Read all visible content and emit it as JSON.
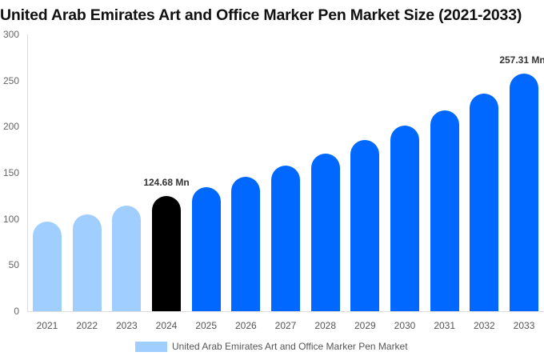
{
  "chart_data": {
    "type": "bar",
    "title": "United Arab Emirates Art and Office Marker Pen Market Size (2021-2033)",
    "xlabel": "",
    "ylabel": "",
    "ylim": [
      0,
      300
    ],
    "yticks": [
      0,
      50,
      100,
      150,
      200,
      250,
      300
    ],
    "categories": [
      "2021",
      "2022",
      "2023",
      "2024",
      "2025",
      "2026",
      "2027",
      "2028",
      "2029",
      "2030",
      "2031",
      "2032",
      "2033"
    ],
    "series": [
      {
        "name": "United Arab Emirates Art and Office Marker Pen Market",
        "values": [
          97,
          105,
          114.5,
          124.68,
          134.4,
          145.7,
          157.8,
          170.9,
          185.6,
          201.2,
          217.7,
          235.9,
          257.31
        ]
      }
    ],
    "annotations": [
      {
        "category": "2024",
        "text": "124.68 Mn"
      },
      {
        "category": "2033",
        "text": "257.31 Mn"
      }
    ],
    "bar_colors": [
      "#a0cfff",
      "#a0cfff",
      "#a0cfff",
      "#000000",
      "#0068ff",
      "#0068ff",
      "#0068ff",
      "#0068ff",
      "#0068ff",
      "#0068ff",
      "#0068ff",
      "#0068ff",
      "#0068ff"
    ],
    "legend_position": "bottom",
    "grid": false
  },
  "legend": {
    "label": "United Arab Emirates Art and Office Marker Pen Market",
    "color": "#a0cfff"
  }
}
